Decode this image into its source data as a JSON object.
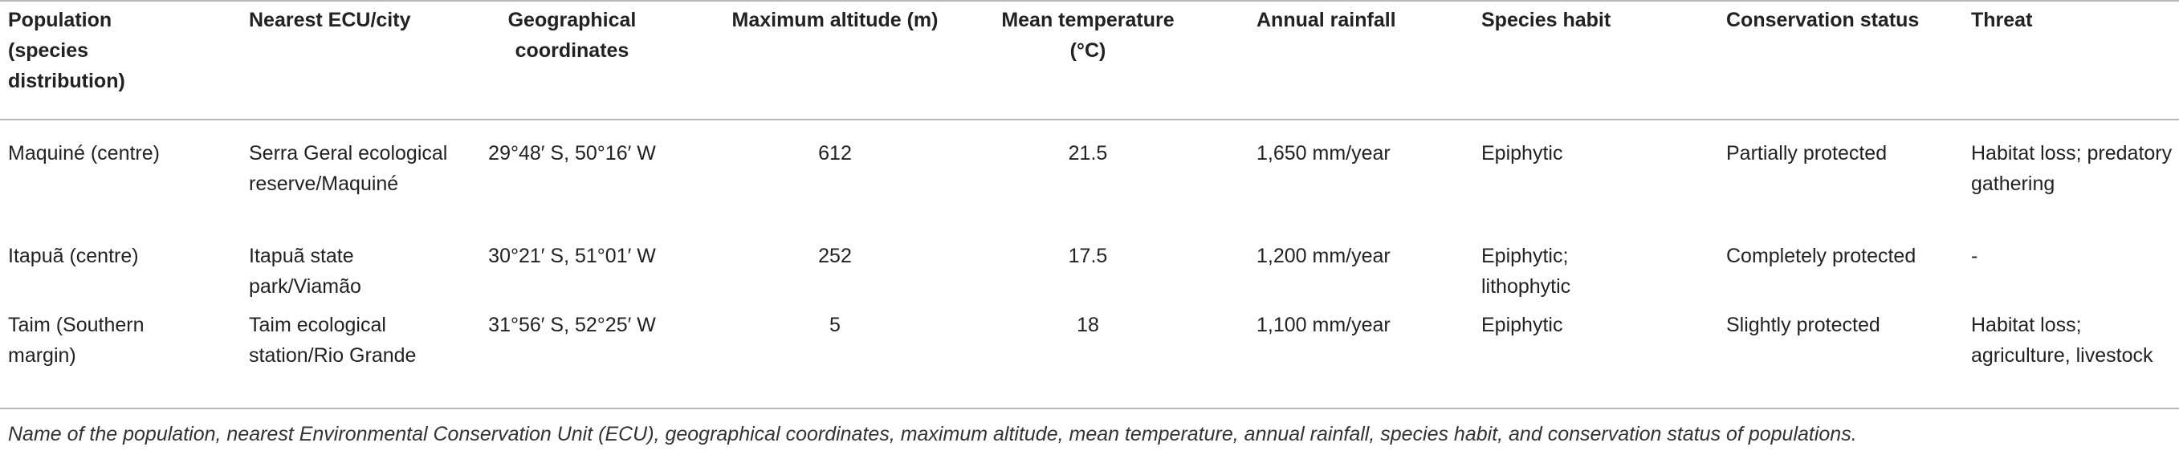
{
  "table": {
    "header": [
      "Population (species distribution)",
      "Nearest ECU/city",
      "Geographical coordinates",
      "Maximum altitude (m)",
      "Mean temperature (°C)",
      "Annual rainfall",
      "Species habit",
      "Conservation status",
      "Threat"
    ],
    "rows": [
      [
        "Maquiné (centre)",
        "Serra Geral ecological reserve/Maquiné",
        "29°48′ S, 50°16′ W",
        "612",
        "21.5",
        "1,650 mm/year",
        "Epiphytic",
        "Partially protected",
        "Habitat loss; predatory gathering"
      ],
      [
        "Itapuã (centre)",
        "Itapuã state park/Viamão",
        "30°21′ S, 51°01′ W",
        "252",
        "17.5",
        "1,200 mm/year",
        "Epiphytic; lithophytic",
        "Completely protected",
        "-"
      ],
      [
        "Taim (Southern margin)",
        "Taim ecological station/Rio Grande",
        "31°56′ S, 52°25′ W",
        "5",
        "18",
        "1,100 mm/year",
        "Epiphytic",
        "Slightly protected",
        "Habitat loss; agriculture, livestock"
      ]
    ],
    "caption": "Name of the population, nearest Environmental Conservation Unit (ECU), geographical coordinates, maximum altitude, mean temperature, annual rainfall, species habit, and conservation status of populations."
  }
}
